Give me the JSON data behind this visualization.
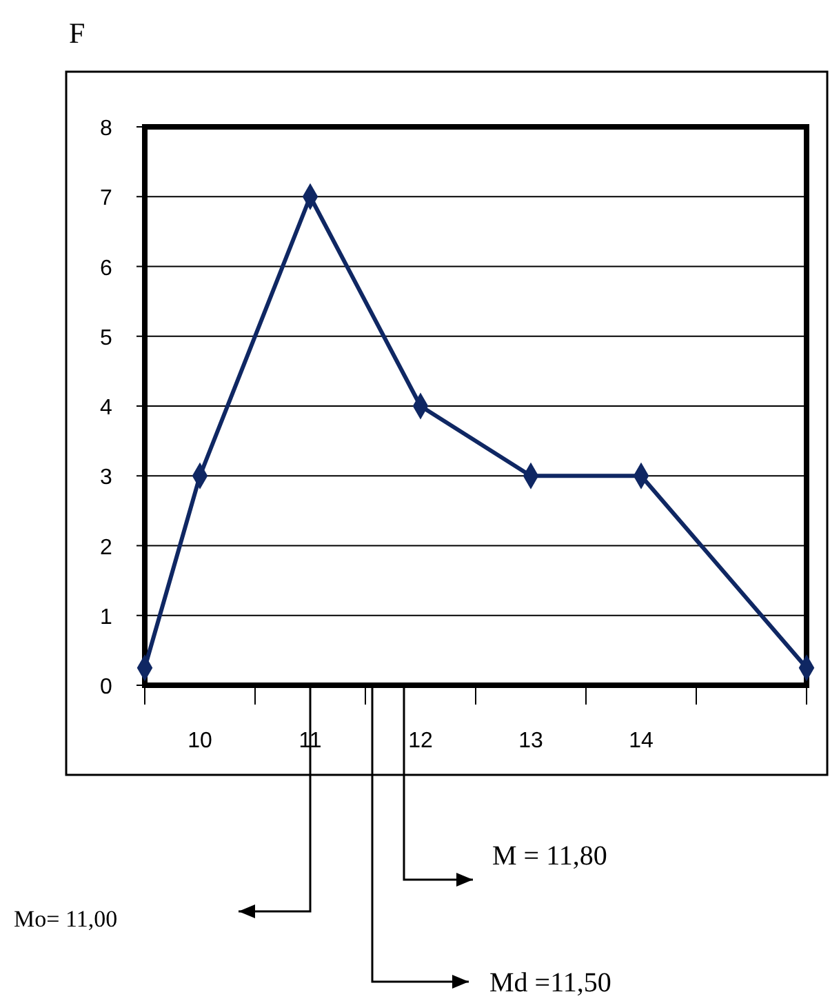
{
  "chart_data": {
    "type": "line",
    "ylabel": "F",
    "x": [
      9.5,
      10,
      11,
      12,
      13,
      14,
      15.5
    ],
    "series": [
      {
        "color": "#0f2763",
        "values": [
          0.25,
          3,
          7,
          4,
          3,
          3,
          0.25
        ]
      }
    ],
    "xlim": [
      9.5,
      15.5
    ],
    "xticks": [
      {
        "value": 9.5,
        "label": null
      },
      10,
      {
        "value": 10.5,
        "label": null
      },
      11,
      {
        "value": 11.5,
        "label": null
      },
      12,
      {
        "value": 12.5,
        "label": null
      },
      13,
      {
        "value": 13.5,
        "label": null
      },
      14,
      {
        "value": 14.5,
        "label": null
      },
      {
        "value": 15.5,
        "label": null
      }
    ],
    "ylim": [
      0,
      8
    ],
    "yticks": [
      0,
      1,
      2,
      3,
      4,
      5,
      6,
      7,
      8
    ],
    "grid": "y",
    "marker": "diamond",
    "line_style": "solid",
    "annotations": [
      "Mo= 11,00",
      "M = 11,80",
      "Md =11,50"
    ]
  }
}
